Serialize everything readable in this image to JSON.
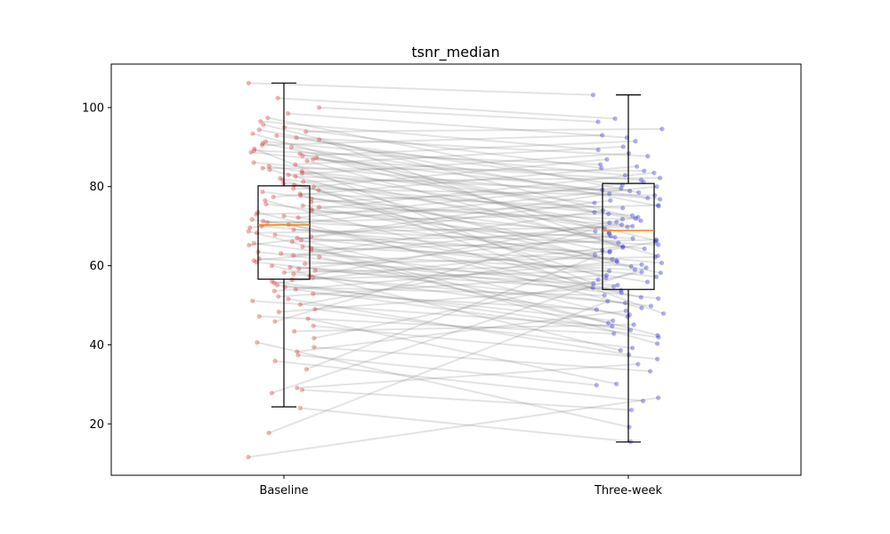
{
  "chart_data": {
    "type": "box",
    "title": "tsnr_median",
    "xlabel": "",
    "ylabel": "",
    "categories": [
      "Baseline",
      "Three-week"
    ],
    "ylim": [
      7,
      111
    ],
    "yticks": [
      20,
      40,
      60,
      80,
      100
    ],
    "grid": false,
    "colors": {
      "baseline_points": "#d62728",
      "threeweek_points": "#1f1fd6",
      "pair_lines": "#808080",
      "median_line": "#ff7f0e",
      "box_edge": "#000000"
    },
    "boxes": [
      {
        "name": "Baseline",
        "whisker_low": 24.3,
        "q1": 56.6,
        "median": 70.3,
        "q3": 80.2,
        "whisker_high": 106.2
      },
      {
        "name": "Three-week",
        "whisker_low": 15.4,
        "q1": 54.0,
        "median": 68.9,
        "q3": 80.8,
        "whisker_high": 103.2
      }
    ],
    "pairs": [
      [
        11.6,
        26.6
      ],
      [
        17.7,
        51.0
      ],
      [
        24.0,
        15.5
      ],
      [
        27.8,
        59.5
      ],
      [
        28.6,
        23.5
      ],
      [
        29.1,
        35.1
      ],
      [
        33.8,
        63.7
      ],
      [
        35.9,
        25.8
      ],
      [
        37.4,
        29.8
      ],
      [
        38.3,
        48.6
      ],
      [
        39.4,
        33.3
      ],
      [
        40.6,
        19.2
      ],
      [
        41.7,
        58.4
      ],
      [
        43.4,
        45.1
      ],
      [
        44.8,
        36.4
      ],
      [
        45.9,
        71.0
      ],
      [
        46.6,
        30.1
      ],
      [
        47.2,
        42.8
      ],
      [
        48.3,
        54.7
      ],
      [
        49.0,
        39.2
      ],
      [
        50.2,
        66.0
      ],
      [
        51.1,
        44.7
      ],
      [
        51.6,
        37.5
      ],
      [
        52.2,
        57.6
      ],
      [
        52.9,
        48.9
      ],
      [
        53.6,
        61.0
      ],
      [
        54.0,
        41.9
      ],
      [
        54.6,
        52.5
      ],
      [
        55.1,
        46.1
      ],
      [
        55.6,
        64.9
      ],
      [
        56.0,
        43.7
      ],
      [
        56.5,
        58.7
      ],
      [
        57.0,
        50.6
      ],
      [
        57.4,
        72.3
      ],
      [
        57.9,
        47.6
      ],
      [
        58.3,
        60.3
      ],
      [
        58.8,
        53.8
      ],
      [
        59.2,
        67.5
      ],
      [
        59.6,
        55.1
      ],
      [
        60.0,
        38.6
      ],
      [
        60.5,
        62.2
      ],
      [
        60.9,
        49.8
      ],
      [
        61.3,
        70.4
      ],
      [
        61.8,
        56.5
      ],
      [
        62.2,
        45.5
      ],
      [
        62.6,
        74.0
      ],
      [
        63.1,
        59.0
      ],
      [
        63.5,
        51.7
      ],
      [
        63.9,
        66.6
      ],
      [
        64.4,
        40.3
      ],
      [
        64.8,
        61.6
      ],
      [
        65.2,
        76.5
      ],
      [
        65.7,
        54.4
      ],
      [
        66.1,
        68.1
      ],
      [
        66.5,
        47.1
      ],
      [
        67.0,
        63.4
      ],
      [
        67.4,
        78.2
      ],
      [
        67.8,
        57.2
      ],
      [
        68.3,
        69.8
      ],
      [
        68.7,
        42.4
      ],
      [
        69.1,
        65.3
      ],
      [
        69.6,
        80.0
      ],
      [
        70.0,
        60.7
      ],
      [
        70.4,
        52.0
      ],
      [
        70.9,
        73.1
      ],
      [
        71.3,
        66.9
      ],
      [
        71.7,
        55.9
      ],
      [
        72.2,
        81.2
      ],
      [
        72.6,
        62.8
      ],
      [
        73.0,
        75.3
      ],
      [
        73.5,
        49.3
      ],
      [
        73.9,
        68.7
      ],
      [
        74.3,
        83.5
      ],
      [
        74.8,
        58.2
      ],
      [
        75.2,
        71.8
      ],
      [
        75.6,
        64.3
      ],
      [
        76.1,
        79.6
      ],
      [
        76.5,
        53.2
      ],
      [
        76.9,
        70.0
      ],
      [
        77.4,
        85.1
      ],
      [
        77.8,
        61.3
      ],
      [
        78.2,
        74.6
      ],
      [
        78.7,
        67.2
      ],
      [
        79.1,
        47.9
      ],
      [
        79.5,
        77.8
      ],
      [
        80.0,
        86.9
      ],
      [
        80.4,
        63.9
      ],
      [
        80.8,
        72.7
      ],
      [
        81.3,
        82.2
      ],
      [
        81.7,
        56.9
      ],
      [
        82.1,
        69.3
      ],
      [
        82.6,
        78.9
      ],
      [
        83.0,
        88.4
      ],
      [
        83.4,
        65.8
      ],
      [
        83.9,
        75.9
      ],
      [
        84.3,
        59.8
      ],
      [
        84.7,
        84.0
      ],
      [
        85.2,
        70.9
      ],
      [
        85.6,
        90.1
      ],
      [
        86.1,
        77.1
      ],
      [
        86.5,
        62.5
      ],
      [
        86.9,
        81.7
      ],
      [
        87.4,
        73.5
      ],
      [
        87.8,
        91.5
      ],
      [
        88.3,
        66.3
      ],
      [
        88.7,
        79.2
      ],
      [
        89.1,
        85.6
      ],
      [
        89.6,
        55.5
      ],
      [
        90.0,
        76.8
      ],
      [
        90.5,
        93.0
      ],
      [
        91.0,
        71.4
      ],
      [
        91.4,
        82.9
      ],
      [
        91.9,
        64.6
      ],
      [
        92.4,
        87.7
      ],
      [
        92.9,
        80.4
      ],
      [
        93.4,
        68.4
      ],
      [
        93.9,
        94.6
      ],
      [
        94.4,
        75.1
      ],
      [
        95.0,
        84.7
      ],
      [
        95.7,
        72.0
      ],
      [
        96.5,
        89.3
      ],
      [
        97.4,
        78.5
      ],
      [
        98.5,
        92.4
      ],
      [
        100.0,
        96.4
      ],
      [
        102.4,
        97.2
      ],
      [
        106.2,
        103.2
      ]
    ]
  }
}
